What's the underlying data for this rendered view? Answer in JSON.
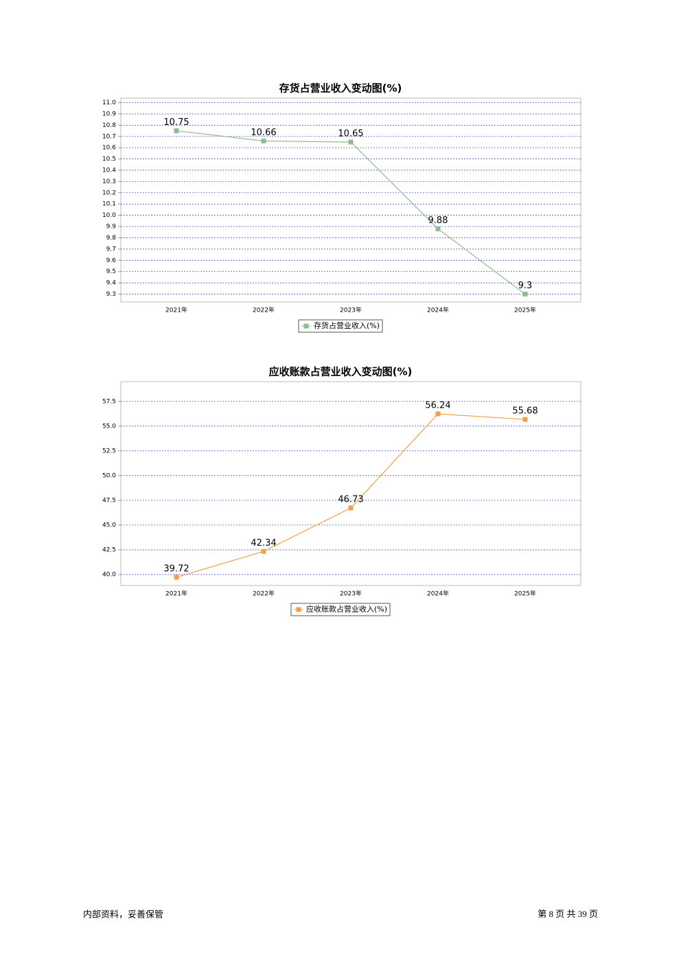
{
  "chart_data": [
    {
      "type": "line",
      "title": "存货占营业收入变动图(%)",
      "categories": [
        "2021年",
        "2022年",
        "2023年",
        "2024年",
        "2025年"
      ],
      "series": [
        {
          "name": "存货占营业收入(%)",
          "color": "#8fbc8f",
          "values": [
            10.75,
            10.66,
            10.65,
            9.88,
            9.3
          ]
        }
      ],
      "ylim": [
        9.23,
        11.04
      ],
      "yticks": [
        9.3,
        9.4,
        9.5,
        9.6,
        9.7,
        9.8,
        9.9,
        {
          "value": 10,
          "label": "10.0"
        },
        10.1,
        10.2,
        10.3,
        10.4,
        10.5,
        10.6,
        10.7,
        10.8,
        10.9,
        {
          "value": 11,
          "label": "11.0"
        }
      ],
      "grid": true,
      "legend": "bottom"
    },
    {
      "type": "line",
      "title": "应收账款占营业收入变动图(%)",
      "categories": [
        "2021年",
        "2022年",
        "2023年",
        "2024年",
        "2025年"
      ],
      "series": [
        {
          "name": "应收账款占营业收入(%)",
          "color": "#f0a048",
          "values": [
            39.72,
            42.34,
            46.73,
            56.24,
            55.68
          ]
        }
      ],
      "ylim": [
        38.89,
        59.5
      ],
      "yticks": [
        {
          "value": 40,
          "label": "40.0"
        },
        42.5,
        {
          "value": 45,
          "label": "45.0"
        },
        47.5,
        {
          "value": 50,
          "label": "50.0"
        },
        52.5,
        {
          "value": 55,
          "label": "55.0"
        },
        57.5
      ],
      "grid": true,
      "legend": "bottom"
    }
  ],
  "footer": {
    "note": "内部资料，妥善保管",
    "page": "第 8 页 共 39 页"
  }
}
